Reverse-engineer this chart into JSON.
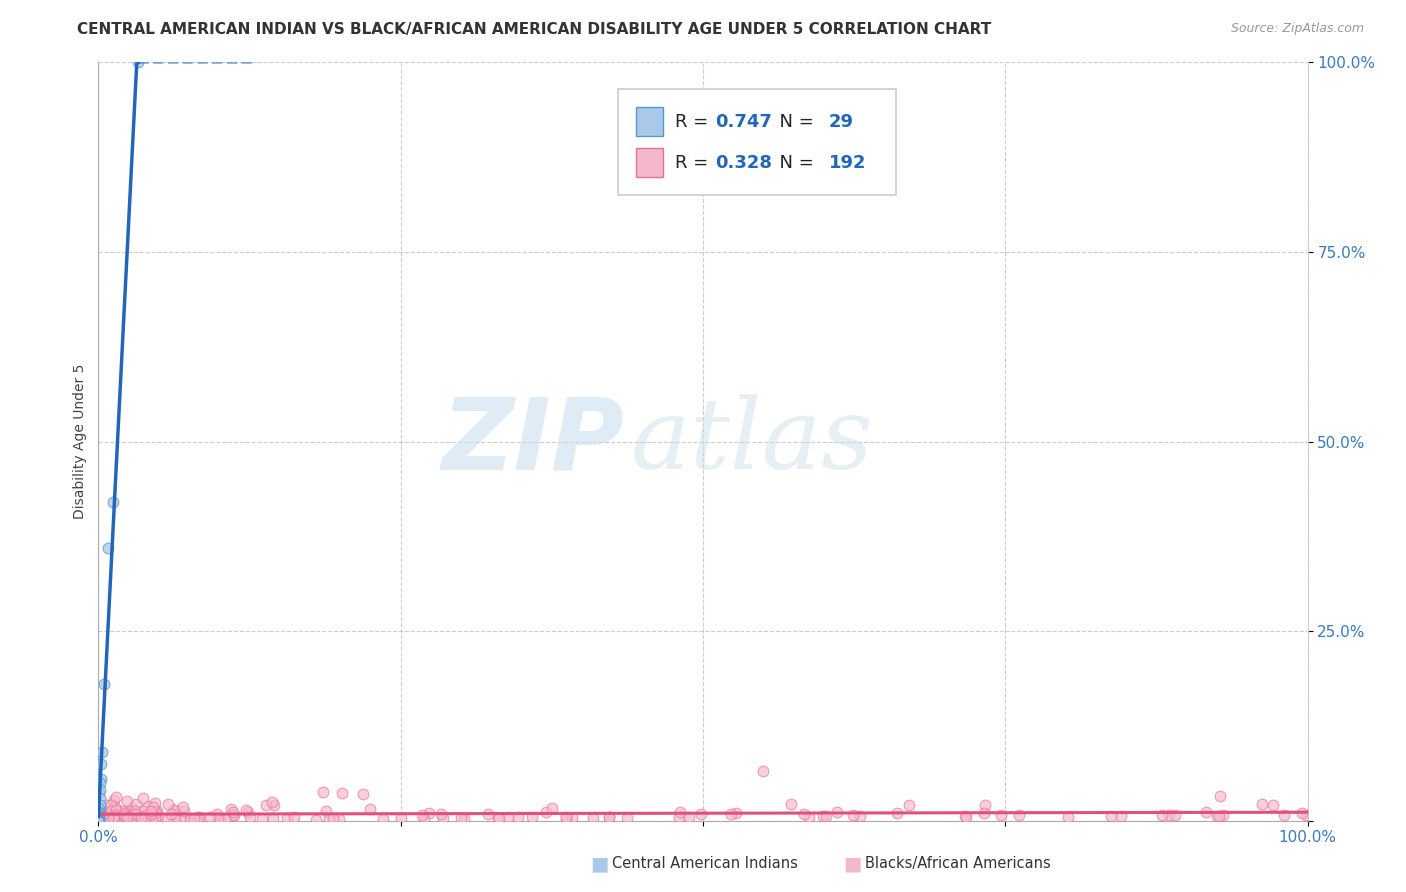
{
  "title": "CENTRAL AMERICAN INDIAN VS BLACK/AFRICAN AMERICAN DISABILITY AGE UNDER 5 CORRELATION CHART",
  "source": "Source: ZipAtlas.com",
  "ylabel": "Disability Age Under 5",
  "xlim": [
    0.0,
    1.0
  ],
  "ylim": [
    0.0,
    1.0
  ],
  "x_ticks": [
    0.0,
    0.25,
    0.5,
    0.75,
    1.0
  ],
  "x_tick_labels": [
    "0.0%",
    "",
    "",
    "",
    "100.0%"
  ],
  "y_ticks": [
    0.0,
    0.25,
    0.5,
    0.75,
    1.0
  ],
  "y_tick_labels_right": [
    "",
    "25.0%",
    "50.0%",
    "75.0%",
    "100.0%"
  ],
  "blue_color": "#aac8e8",
  "blue_edge_color": "#5599cc",
  "pink_color": "#f5b8cb",
  "pink_edge_color": "#e8709a",
  "trend_blue": "#2266bb",
  "trend_pink": "#e0507a",
  "R_blue": 0.747,
  "N_blue": 29,
  "R_pink": 0.328,
  "N_pink": 192,
  "watermark_zip": "ZIP",
  "watermark_atlas": "atlas",
  "background_color": "#ffffff",
  "grid_color": "#cccccc",
  "title_fontsize": 11,
  "axis_label_fontsize": 10,
  "tick_fontsize": 11,
  "legend_fontsize": 13,
  "marker_size_blue": 60,
  "marker_size_pink": 60
}
